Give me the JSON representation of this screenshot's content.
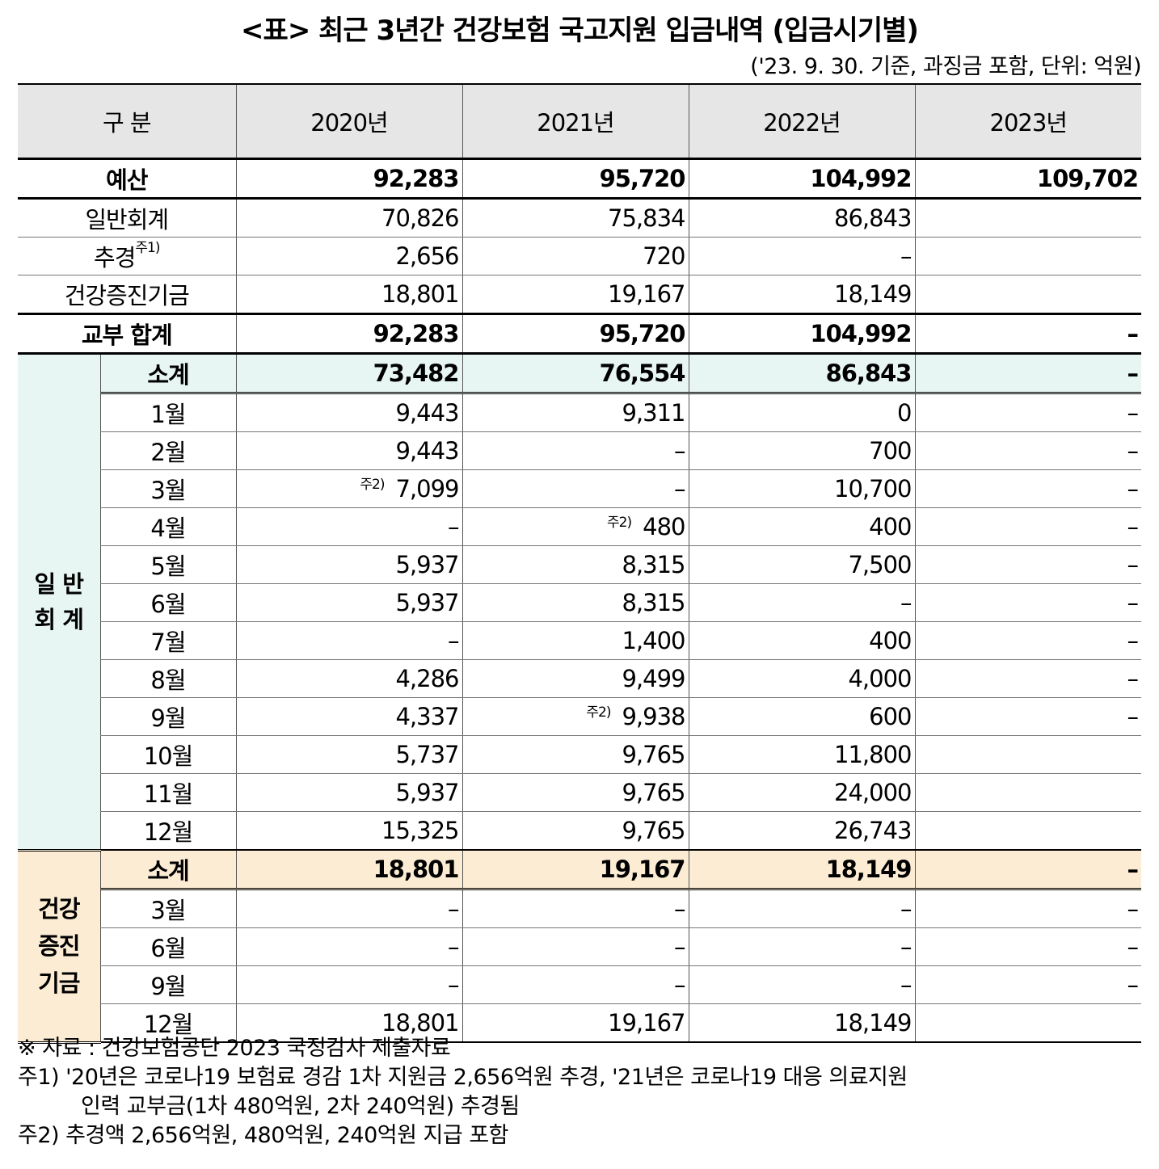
{
  "title": "<표> 최근 3년간 건강보험 국고지원 입금내역 (입금시기별)",
  "unit_note": "('23. 9. 30. 기준, 과징금 포함, 단위: 억원)",
  "headers": [
    "구 분",
    "2020년",
    "2021년",
    "2022년",
    "2023년"
  ],
  "top_rows": [
    {
      "label": "예산",
      "values": [
        "92,283",
        "95,720",
        "104,992",
        "109,702"
      ]
    },
    {
      "label": "일반회계",
      "values": [
        "70,826",
        "75,834",
        "86,843",
        ""
      ]
    },
    {
      "label": "추경",
      "label_sup": "주1)",
      "values": [
        "2,656",
        "720",
        "–",
        ""
      ]
    },
    {
      "label": "건강증진기금",
      "values": [
        "18,801",
        "19,167",
        "18,149",
        ""
      ]
    },
    {
      "label": "교부 합계",
      "values": [
        "92,283",
        "95,720",
        "104,992",
        "–"
      ]
    }
  ],
  "general": {
    "group_label_1": "일 반",
    "group_label_2": "회 계",
    "rows": [
      {
        "label": "소계",
        "values": [
          "73,482",
          "76,554",
          "86,843",
          "–"
        ]
      },
      {
        "label": "1월",
        "values": [
          "9,443",
          "9,311",
          "0",
          "–"
        ]
      },
      {
        "label": "2월",
        "values": [
          "9,443",
          "–",
          "700",
          "–"
        ]
      },
      {
        "label": "3월",
        "values": [
          "7,099",
          "–",
          "10,700",
          "–"
        ],
        "note_col": 0
      },
      {
        "label": "4월",
        "values": [
          "–",
          "480",
          "400",
          "–"
        ],
        "note_col": 1
      },
      {
        "label": "5월",
        "values": [
          "5,937",
          "8,315",
          "7,500",
          "–"
        ]
      },
      {
        "label": "6월",
        "values": [
          "5,937",
          "8,315",
          "–",
          "–"
        ]
      },
      {
        "label": "7월",
        "values": [
          "–",
          "1,400",
          "400",
          "–"
        ]
      },
      {
        "label": "8월",
        "values": [
          "4,286",
          "9,499",
          "4,000",
          "–"
        ]
      },
      {
        "label": "9월",
        "values": [
          "4,337",
          "9,938",
          "600",
          "–"
        ],
        "note_col": 1
      },
      {
        "label": "10월",
        "values": [
          "5,737",
          "9,765",
          "11,800",
          ""
        ]
      },
      {
        "label": "11월",
        "values": [
          "5,937",
          "9,765",
          "24,000",
          ""
        ]
      },
      {
        "label": "12월",
        "values": [
          "15,325",
          "9,765",
          "26,743",
          ""
        ]
      }
    ]
  },
  "health": {
    "group_label_1": "건강",
    "group_label_2": "증진",
    "group_label_3": "기금",
    "rows": [
      {
        "label": "소계",
        "values": [
          "18,801",
          "19,167",
          "18,149",
          "–"
        ]
      },
      {
        "label": "3월",
        "values": [
          "–",
          "–",
          "–",
          "–"
        ]
      },
      {
        "label": "6월",
        "values": [
          "–",
          "–",
          "–",
          "–"
        ]
      },
      {
        "label": "9월",
        "values": [
          "–",
          "–",
          "–",
          "–"
        ]
      },
      {
        "label": "12월",
        "values": [
          "18,801",
          "19,167",
          "18,149",
          ""
        ]
      }
    ]
  },
  "inline_note": "주2)",
  "notes": {
    "source": "※ 자료 : 건강보험공단 2023 국정감사 제출자료",
    "note1_line1": "주1) '20년은 코로나19 보험료 경감 1차 지원금 2,656억원 추경, '21년은 코로나19 대응 의료지원",
    "note1_line2": "인력 교부금(1차 480억원, 2차 240억원) 추경됨",
    "note2": "주2) 추경액 2,656억원, 480억원, 240억원 지급 포함"
  }
}
